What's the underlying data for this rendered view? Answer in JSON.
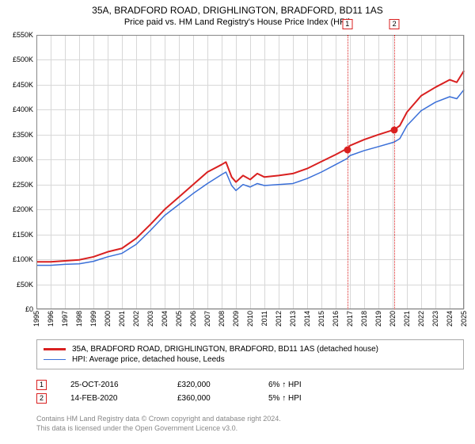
{
  "title_main": "35A, BRADFORD ROAD, DRIGHLINGTON, BRADFORD, BD11 1AS",
  "title_sub": "Price paid vs. HM Land Registry's House Price Index (HPI)",
  "chart": {
    "type": "line",
    "background_color": "#ffffff",
    "grid_color": "#d8d8d8",
    "border_color": "#888888",
    "y_axis": {
      "min": 0,
      "max": 550000,
      "tick_step": 50000,
      "tick_labels": [
        "£0",
        "£50K",
        "£100K",
        "£150K",
        "£200K",
        "£250K",
        "£300K",
        "£350K",
        "£400K",
        "£450K",
        "£500K",
        "£550K"
      ]
    },
    "x_axis": {
      "year_min": 1995,
      "year_max": 2025,
      "tick_labels": [
        "1995",
        "1996",
        "1997",
        "1998",
        "1999",
        "2000",
        "2001",
        "2002",
        "2003",
        "2004",
        "2005",
        "2006",
        "2007",
        "2008",
        "2009",
        "2010",
        "2011",
        "2012",
        "2013",
        "2014",
        "2015",
        "2016",
        "2017",
        "2018",
        "2019",
        "2020",
        "2021",
        "2022",
        "2023",
        "2024",
        "2025"
      ]
    },
    "highlight_band": {
      "x_start": 2017.5,
      "x_end": 2020.3,
      "color": "rgba(200,210,230,0.35)"
    },
    "series": [
      {
        "name": "property",
        "color": "#d92020",
        "line_width": 2,
        "points": [
          [
            1995,
            95
          ],
          [
            1996,
            95
          ],
          [
            1997,
            97
          ],
          [
            1998,
            99
          ],
          [
            1999,
            105
          ],
          [
            2000,
            115
          ],
          [
            2001,
            122
          ],
          [
            2002,
            142
          ],
          [
            2003,
            170
          ],
          [
            2004,
            200
          ],
          [
            2005,
            225
          ],
          [
            2006,
            250
          ],
          [
            2007,
            275
          ],
          [
            2008,
            290
          ],
          [
            2008.3,
            295
          ],
          [
            2008.7,
            265
          ],
          [
            2009,
            255
          ],
          [
            2009.5,
            268
          ],
          [
            2010,
            260
          ],
          [
            2010.5,
            272
          ],
          [
            2011,
            265
          ],
          [
            2012,
            268
          ],
          [
            2013,
            272
          ],
          [
            2014,
            282
          ],
          [
            2015,
            296
          ],
          [
            2016,
            310
          ],
          [
            2016.8,
            322
          ],
          [
            2017,
            328
          ],
          [
            2018,
            340
          ],
          [
            2019,
            350
          ],
          [
            2020.1,
            360
          ],
          [
            2020.5,
            368
          ],
          [
            2021,
            395
          ],
          [
            2022,
            428
          ],
          [
            2023,
            445
          ],
          [
            2024,
            460
          ],
          [
            2024.5,
            455
          ],
          [
            2025,
            478
          ]
        ]
      },
      {
        "name": "hpi",
        "color": "#3a6fd8",
        "line_width": 1.5,
        "points": [
          [
            1995,
            88
          ],
          [
            1996,
            88
          ],
          [
            1997,
            90
          ],
          [
            1998,
            91
          ],
          [
            1999,
            96
          ],
          [
            2000,
            105
          ],
          [
            2001,
            112
          ],
          [
            2002,
            130
          ],
          [
            2003,
            158
          ],
          [
            2004,
            188
          ],
          [
            2005,
            210
          ],
          [
            2006,
            232
          ],
          [
            2007,
            252
          ],
          [
            2008,
            270
          ],
          [
            2008.3,
            275
          ],
          [
            2008.7,
            248
          ],
          [
            2009,
            238
          ],
          [
            2009.5,
            250
          ],
          [
            2010,
            245
          ],
          [
            2010.5,
            252
          ],
          [
            2011,
            248
          ],
          [
            2012,
            250
          ],
          [
            2013,
            252
          ],
          [
            2014,
            262
          ],
          [
            2015,
            275
          ],
          [
            2016,
            290
          ],
          [
            2016.8,
            302
          ],
          [
            2017,
            308
          ],
          [
            2018,
            318
          ],
          [
            2019,
            326
          ],
          [
            2020.1,
            335
          ],
          [
            2020.5,
            342
          ],
          [
            2021,
            368
          ],
          [
            2022,
            398
          ],
          [
            2023,
            415
          ],
          [
            2024,
            426
          ],
          [
            2024.5,
            422
          ],
          [
            2025,
            440
          ]
        ]
      }
    ],
    "sale_markers": [
      {
        "n": "1",
        "year": 2016.82,
        "value": 320,
        "color": "#d92020"
      },
      {
        "n": "2",
        "year": 2020.12,
        "value": 360,
        "color": "#d92020"
      }
    ]
  },
  "legend": {
    "items": [
      {
        "color": "#d92020",
        "width": 2.5,
        "label": "35A, BRADFORD ROAD, DRIGHLINGTON, BRADFORD, BD11 1AS (detached house)"
      },
      {
        "color": "#3a6fd8",
        "width": 1.5,
        "label": "HPI: Average price, detached house, Leeds"
      }
    ]
  },
  "sales": [
    {
      "n": "1",
      "border": "#d92020",
      "date": "25-OCT-2016",
      "price": "£320,000",
      "hpi": "6% ↑ HPI"
    },
    {
      "n": "2",
      "border": "#d92020",
      "date": "14-FEB-2020",
      "price": "£360,000",
      "hpi": "5% ↑ HPI"
    }
  ],
  "footer_line1": "Contains HM Land Registry data © Crown copyright and database right 2024.",
  "footer_line2": "This data is licensed under the Open Government Licence v3.0."
}
